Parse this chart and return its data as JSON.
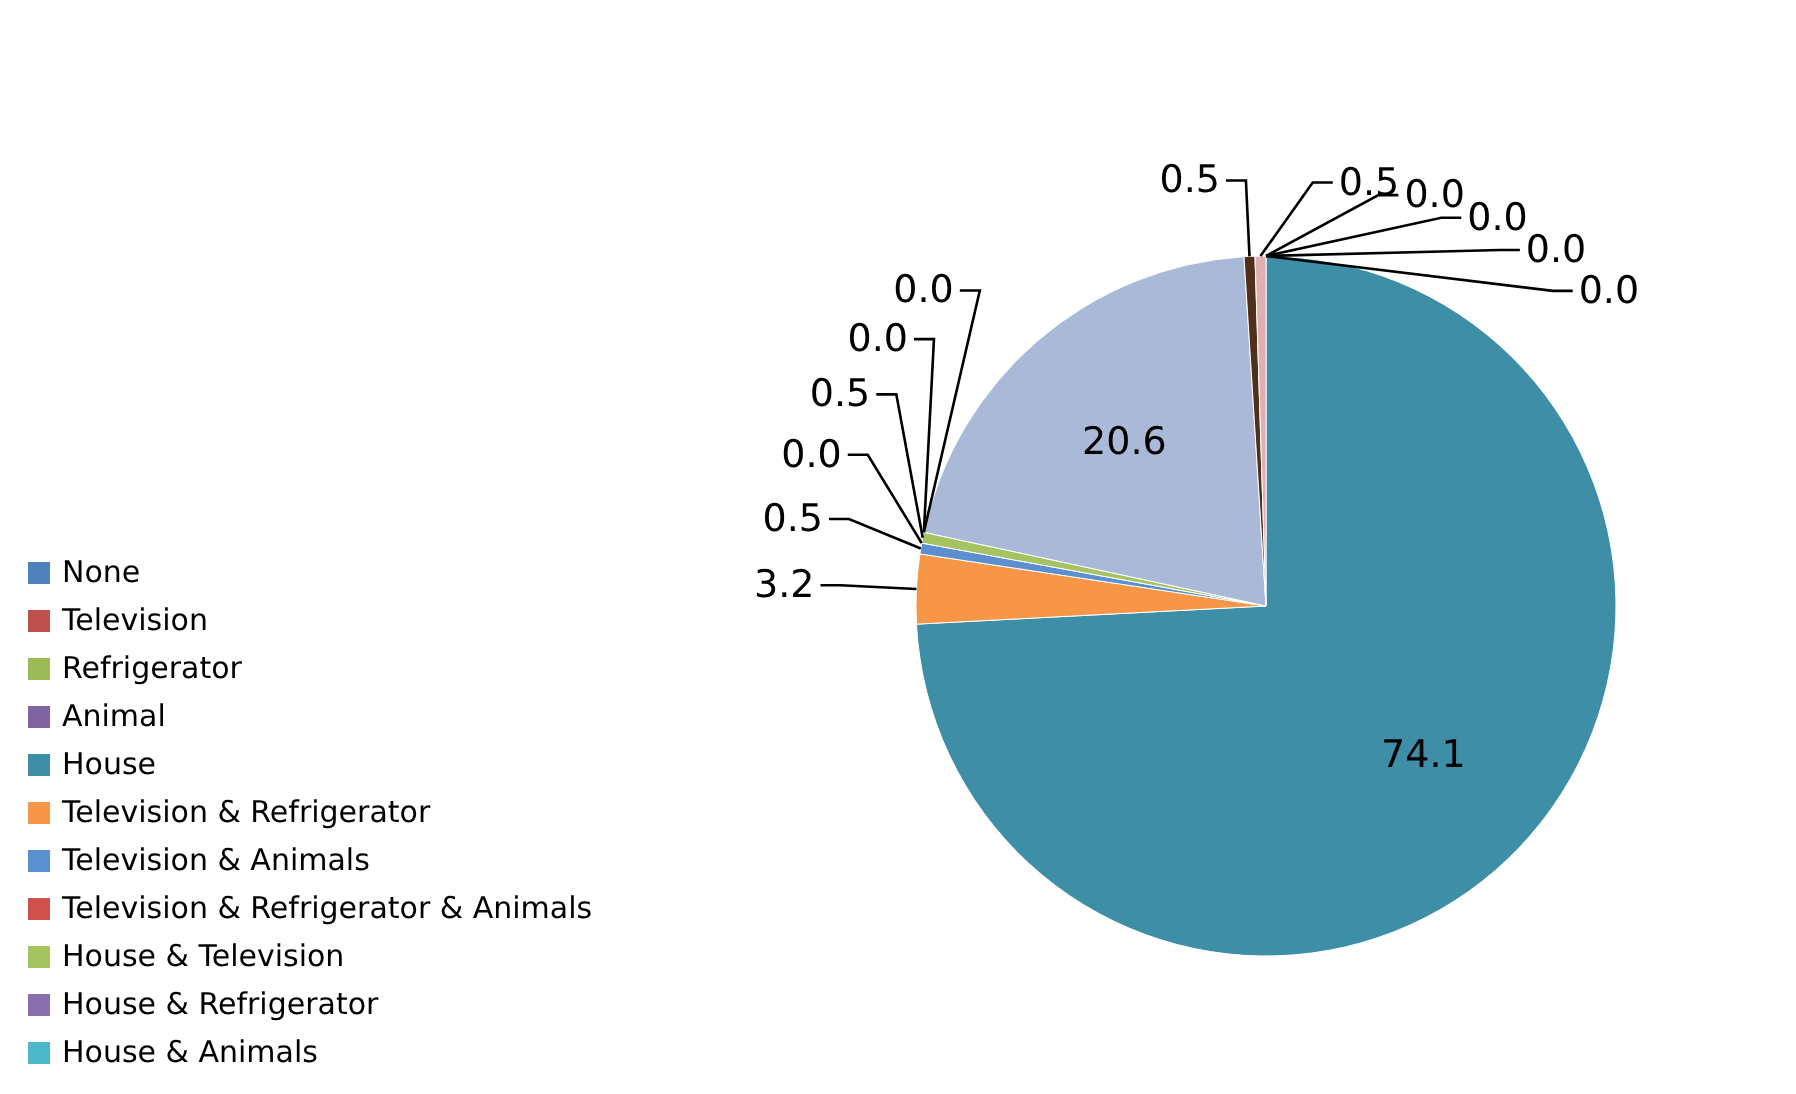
{
  "chart_data": {
    "type": "pie",
    "categories": [
      "None",
      "Television",
      "Refrigerator",
      "Animal",
      "House",
      "Television & Refrigerator",
      "Television & Animals",
      "Television & Refrigerator & Animals",
      "House & Television",
      "House & Refrigerator",
      "House & Animals",
      null,
      null,
      null
    ],
    "values": [
      0,
      0,
      0,
      0,
      74.1,
      3.2,
      0.5,
      0,
      0.5,
      0,
      0,
      20.6,
      0.5,
      0.5
    ],
    "value_labels": [
      "0.0",
      "0.0",
      "0.0",
      "0.0",
      "74.1",
      "3.2",
      "0.5",
      "0.0",
      "0.5",
      "0.0",
      "0.0",
      "20.6",
      "0.5",
      "0.5"
    ],
    "colors": [
      "#4f81bd",
      "#c0504d",
      "#9bbb59",
      "#8064a2",
      "#3d8ea6",
      "#f79646",
      "#5b8fd0",
      "#d0504d",
      "#a5c360",
      "#8a6fb0",
      "#4bb8cc",
      "#aab9d8",
      "#50301a",
      "#e0b0b0"
    ],
    "legend": "left"
  }
}
